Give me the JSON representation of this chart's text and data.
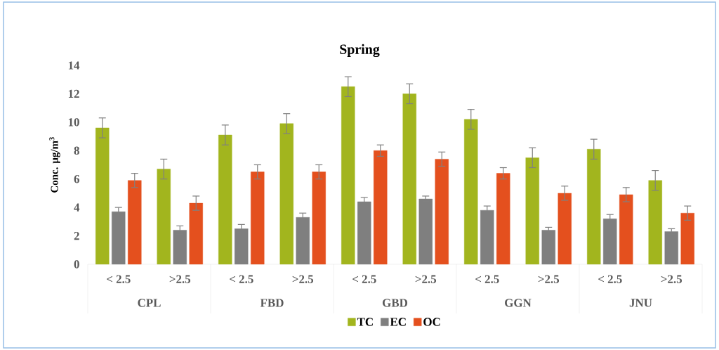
{
  "chart_data": {
    "type": "bar",
    "title": "Spring",
    "ylabel": "Conc. µg/m$^{3}$",
    "categories": [
      "< 2.5",
      ">2.5",
      "< 2.5",
      ">2.5",
      "< 2.5",
      ">2.5",
      "< 2.5",
      ">2.5",
      "< 2.5",
      ">2.5"
    ],
    "annotations": [
      "CPL",
      "FBD",
      "GBD",
      "GGN",
      "JNU"
    ],
    "series": [
      {
        "name": "TC",
        "color": "#a2b51e",
        "values": [
          9.6,
          6.7,
          9.1,
          9.9,
          12.5,
          12.0,
          10.2,
          7.5,
          8.1,
          5.9
        ],
        "errors": [
          0.7,
          0.7,
          0.7,
          0.7,
          0.7,
          0.7,
          0.7,
          0.7,
          0.7,
          0.7
        ]
      },
      {
        "name": "EC",
        "color": "#7f7f7f",
        "values": [
          3.7,
          2.4,
          2.5,
          3.3,
          4.4,
          4.6,
          3.8,
          2.4,
          3.2,
          2.3
        ],
        "errors": [
          0.3,
          0.3,
          0.3,
          0.3,
          0.3,
          0.2,
          0.3,
          0.2,
          0.3,
          0.2
        ]
      },
      {
        "name": "OC",
        "color": "#e4501e",
        "values": [
          5.9,
          4.3,
          6.5,
          6.5,
          8.0,
          7.4,
          6.4,
          5.0,
          4.9,
          3.6
        ],
        "errors": [
          0.5,
          0.5,
          0.5,
          0.5,
          0.4,
          0.5,
          0.4,
          0.5,
          0.5,
          0.5
        ]
      }
    ],
    "ylim": [
      0,
      14
    ],
    "yticks": [
      0,
      2,
      4,
      6,
      8,
      10,
      12,
      14
    ],
    "legend": "bottom"
  }
}
